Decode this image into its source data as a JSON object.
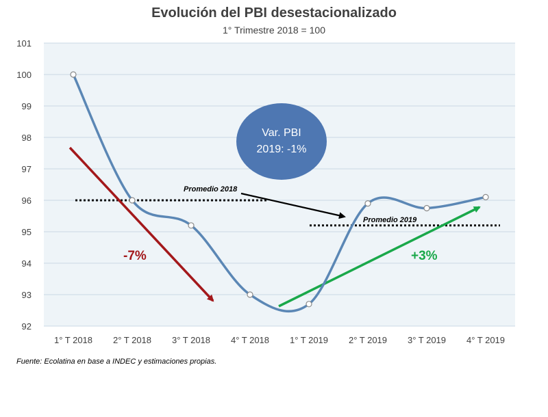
{
  "chart_data": {
    "type": "line",
    "title": "Evolución del PBI desestacionalizado",
    "subtitle": "1° Trimestre  2018 = 100",
    "categories": [
      "1° T 2018",
      "2° T 2018",
      "3° T 2018",
      "4° T 2018",
      "1° T 2019",
      "2° T 2019",
      "3° T 2019",
      "4° T 2019"
    ],
    "values": [
      100,
      96.0,
      95.2,
      93.0,
      92.7,
      95.9,
      95.75,
      96.1
    ],
    "ylim": [
      92,
      101
    ],
    "yticks": [
      92,
      93,
      94,
      95,
      96,
      97,
      98,
      99,
      100,
      101
    ],
    "grid": true,
    "averages": [
      {
        "label": "Promedio 2018",
        "value": 96.0
      },
      {
        "label": "Promedio 2019",
        "value": 95.2
      }
    ],
    "annotations": {
      "decline_label": "-7%",
      "rise_label": "+3%",
      "bubble_line1": "Var. PBI",
      "bubble_line2": "2019: -1%"
    },
    "colors": {
      "series": "#5b87b5",
      "plot_bg": "#eef4f8",
      "grid": "#c9d8e4",
      "decline": "#a3181b",
      "rise": "#1aa84a",
      "bubble": "#4e77b2"
    }
  },
  "footer": {
    "source": "Fuente: Ecolatina en base a INDEC y estimaciones propias."
  }
}
